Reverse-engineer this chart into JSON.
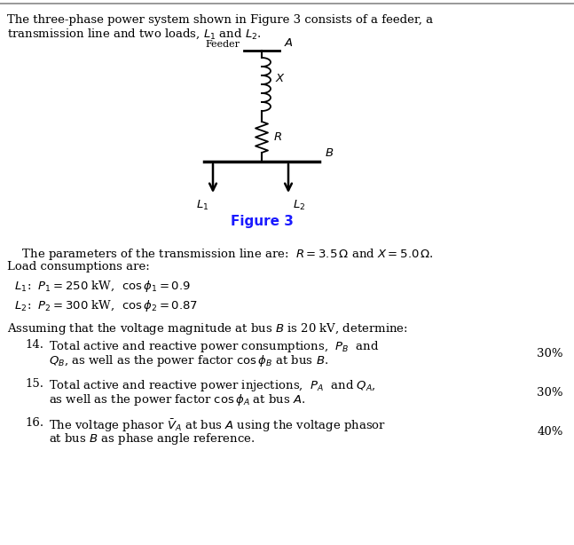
{
  "title_text1": "The three-phase power system shown in Figure 3 consists of a feeder, a",
  "title_text2": "transmission line and two loads, $L_1$ and $L_2$.",
  "figure_caption": "Figure 3",
  "param_text1": "    The parameters of the transmission line are:  $R = 3.5\\,\\Omega$ and $X = 5.0\\,\\Omega$.",
  "param_text2": "Load consumptions are:",
  "load1_text": "  $L_1$:  $P_1 = 250$ kW,  $\\cos\\phi_1 = 0.9$",
  "load2_text": "  $L_2$:  $P_2 = 300$ kW,  $\\cos\\phi_2 = 0.87$",
  "assume_text": "Assuming that the voltage magnitude at bus $B$ is 20 kV, determine:",
  "q14_num": "14.",
  "q14_text1": "Total active and reactive power consumptions,  $P_B$  and",
  "q14_text2": "$Q_B$, as well as the power factor $\\cos\\phi_B$ at bus $B$.",
  "q14_pct": "30%",
  "q15_num": "15.",
  "q15_text1": "Total active and reactive power injections,  $P_A$  and $Q_A$,",
  "q15_text2": "as well as the power factor $\\cos\\phi_A$ at bus $A$.",
  "q15_pct": "30%",
  "q16_num": "16.",
  "q16_text1": "The voltage phasor $\\bar{V}_A$ at bus $A$ using the voltage phasor",
  "q16_text2": "at bus $B$ as phase angle reference.",
  "q16_pct": "40%",
  "bg_color": "#ffffff",
  "text_color": "#000000"
}
